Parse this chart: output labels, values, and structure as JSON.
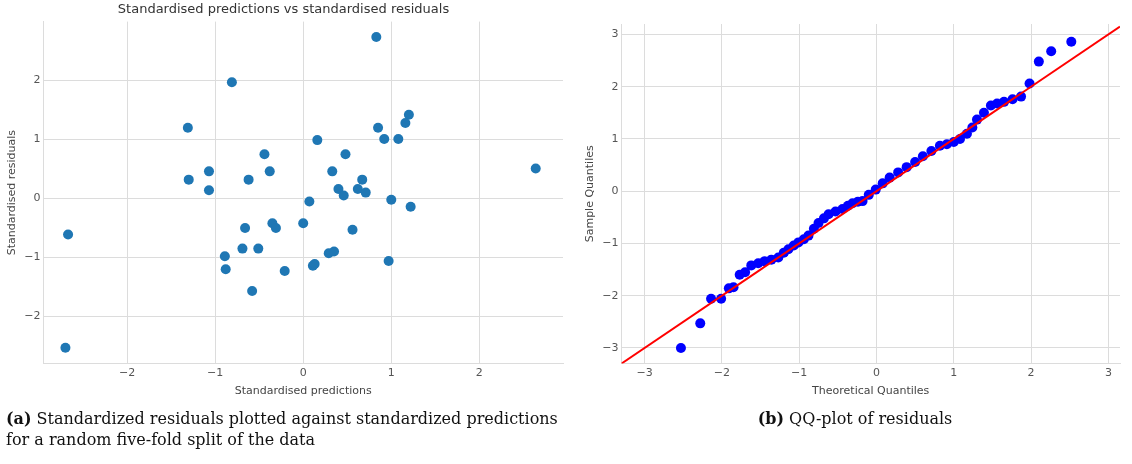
{
  "chart_data": [
    {
      "type": "scatter",
      "title": "Standardised predictions vs standardised residuals",
      "xlabel": "Standardised predictions",
      "ylabel": "Standardised residuals",
      "x": [
        -0.81,
        -1.31,
        -0.44,
        -0.38,
        -1.07,
        -1.3,
        -0.62,
        -1.07,
        0.07,
        -2.67,
        -0.35,
        -0.31,
        -0.66,
        0.0,
        -0.69,
        -0.51,
        -0.89,
        -0.88,
        -0.21,
        -0.58,
        -2.7,
        0.11,
        0.13,
        0.16,
        0.83,
        1.2,
        1.16,
        0.85,
        0.92,
        1.08,
        0.48,
        0.33,
        0.67,
        0.4,
        0.46,
        0.62,
        0.71,
        2.64,
        1.0,
        1.22,
        0.56,
        0.29,
        0.35,
        0.97
      ],
      "values": [
        1.97,
        1.2,
        0.75,
        0.46,
        0.46,
        0.32,
        0.32,
        0.14,
        -0.05,
        -0.61,
        -0.42,
        -0.5,
        -0.5,
        -0.42,
        -0.85,
        -0.85,
        -0.98,
        -1.2,
        -1.23,
        -1.57,
        -2.53,
        -1.14,
        -1.11,
        0.99,
        2.74,
        1.42,
        1.28,
        1.2,
        1.01,
        1.01,
        0.75,
        0.46,
        0.32,
        0.16,
        0.05,
        0.16,
        0.1,
        0.51,
        -0.02,
        -0.14,
        -0.53,
        -0.93,
        -0.9,
        -1.06
      ],
      "color": "#1f77b4",
      "marker": "circle",
      "grid": true,
      "xlim": [
        -2.95,
        2.95
      ],
      "xticks": [
        -2,
        -1,
        0,
        1,
        2
      ],
      "ylim": [
        -2.8,
        3.0
      ],
      "yticks": [
        -2,
        -1,
        0,
        1,
        2
      ],
      "annotations": [
        "(a) Standardized residuals plotted against standardized predictions for a random five-fold split of the data"
      ]
    },
    {
      "type": "scatter",
      "xlabel": "Theoretical Quantiles",
      "ylabel": "Sample Quantiles",
      "grid": true,
      "series": [
        {
          "marker": "circle",
          "color": "#0000ff",
          "x": [
            -2.53,
            -2.28,
            -2.14,
            -2.01,
            -1.91,
            -1.85,
            -1.77,
            -1.7,
            -1.62,
            -1.53,
            -1.45,
            -1.36,
            -1.27,
            -1.2,
            -1.14,
            -1.07,
            -1.01,
            -0.94,
            -0.88,
            -0.81,
            -0.75,
            -0.68,
            -0.62,
            -0.53,
            -0.44,
            -0.37,
            -0.31,
            -0.24,
            -0.18,
            -0.1,
            -0.01,
            0.08,
            0.17,
            0.28,
            0.39,
            0.5,
            0.6,
            0.71,
            0.82,
            0.91,
            1.0,
            1.08,
            1.17,
            1.24,
            1.3,
            1.39,
            1.48,
            1.56,
            1.65,
            1.76,
            1.87,
            1.98,
            2.1,
            2.26,
            2.52
          ],
          "values": [
            -3.0,
            -2.53,
            -2.06,
            -2.06,
            -1.86,
            -1.84,
            -1.6,
            -1.55,
            -1.42,
            -1.38,
            -1.34,
            -1.31,
            -1.27,
            -1.18,
            -1.11,
            -1.04,
            -0.98,
            -0.92,
            -0.85,
            -0.72,
            -0.61,
            -0.52,
            -0.44,
            -0.39,
            -0.34,
            -0.28,
            -0.23,
            -0.2,
            -0.19,
            -0.07,
            0.03,
            0.15,
            0.26,
            0.36,
            0.46,
            0.56,
            0.67,
            0.77,
            0.87,
            0.9,
            0.94,
            1.0,
            1.1,
            1.22,
            1.37,
            1.5,
            1.64,
            1.68,
            1.71,
            1.76,
            1.81,
            2.06,
            2.48,
            2.68,
            2.86
          ]
        },
        {
          "type": "line",
          "color": "#ff0000",
          "x": [
            -3.3,
            3.15
          ],
          "values": [
            -3.3,
            3.15
          ]
        }
      ],
      "xlim": [
        -3.3,
        3.15
      ],
      "xticks": [
        -3,
        -2,
        -1,
        0,
        1,
        2,
        3
      ],
      "ylim": [
        -3.3,
        3.2
      ],
      "yticks": [
        -3,
        -2,
        -1,
        0,
        1,
        2,
        3
      ],
      "annotations": [
        "(b) QQ-plot of residuals"
      ]
    }
  ]
}
